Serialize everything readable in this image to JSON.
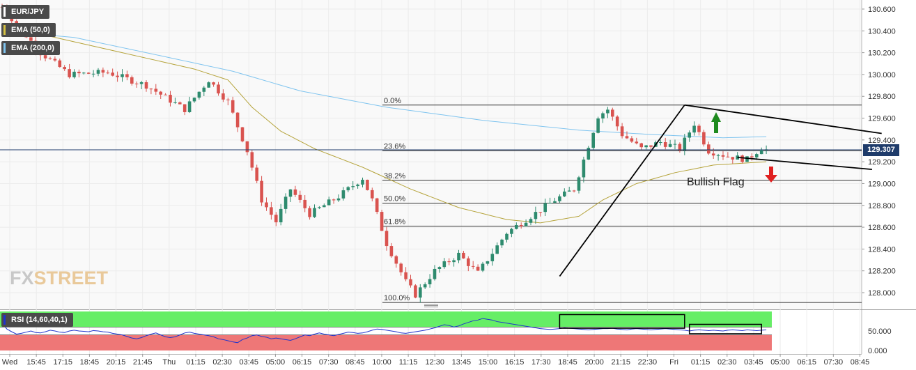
{
  "instrument": "EUR/JPY",
  "indicators": {
    "ema50": {
      "label": "EMA (50,0)",
      "color": "#b5a33a"
    },
    "ema200": {
      "label": "EMA (200,0)",
      "color": "#7fc4ef"
    },
    "rsi": {
      "label": "RSI (14,60,40,1)"
    }
  },
  "watermark": {
    "part1": "FX",
    "part2": "STREET"
  },
  "current_price": "129.307",
  "annotation": "Bullish Flag",
  "colors": {
    "bull": "#2e8b6e",
    "bear": "#d9534f",
    "rsi_upper": "#66ee66",
    "rsi_lower": "#ee7777",
    "rsi_line": "#1f33cc",
    "arrow_up": "#1e8a1e",
    "arrow_down": "#e02020"
  },
  "chart_data": {
    "type": "candlestick",
    "y_axis": {
      "ylim": [
        127.92,
        130.66
      ],
      "ticks": [
        "130.600",
        "130.400",
        "130.200",
        "130.000",
        "129.800",
        "129.600",
        "129.400",
        "129.200",
        "129.000",
        "128.800",
        "128.600",
        "128.400",
        "128.200",
        "128.000"
      ]
    },
    "x_axis": {
      "tick_labels": [
        "Wed",
        "15:45",
        "17:15",
        "18:45",
        "20:15",
        "21:45",
        "Thu",
        "01:15",
        "02:30",
        "03:45",
        "05:00",
        "06:15",
        "07:30",
        "08:45",
        "10:00",
        "11:15",
        "12:30",
        "13:45",
        "15:00",
        "16:15",
        "17:30",
        "18:45",
        "20:00",
        "21:15",
        "22:30",
        "Fri",
        "01:15",
        "02:30",
        "03:45",
        "05:00",
        "06:15",
        "07:30",
        "08:45"
      ]
    },
    "fibonacci": [
      {
        "label": "0.0%",
        "price": 129.72
      },
      {
        "label": "23.6%",
        "price": 129.3
      },
      {
        "label": "38.2%",
        "price": 129.03
      },
      {
        "label": "50.0%",
        "price": 128.82
      },
      {
        "label": "61.8%",
        "price": 128.61
      },
      {
        "label": "100.0%",
        "price": 127.91
      }
    ],
    "anchors": [
      {
        "i": 0,
        "p": 130.62
      },
      {
        "i": 8,
        "p": 130.2
      },
      {
        "i": 14,
        "p": 130.0
      },
      {
        "i": 22,
        "p": 130.02
      },
      {
        "i": 30,
        "p": 129.9
      },
      {
        "i": 38,
        "p": 129.68
      },
      {
        "i": 43,
        "p": 129.95
      },
      {
        "i": 47,
        "p": 129.75
      },
      {
        "i": 51,
        "p": 129.3
      },
      {
        "i": 54,
        "p": 128.85
      },
      {
        "i": 57,
        "p": 128.65
      },
      {
        "i": 60,
        "p": 128.95
      },
      {
        "i": 64,
        "p": 128.72
      },
      {
        "i": 70,
        "p": 128.88
      },
      {
        "i": 75,
        "p": 129.05
      },
      {
        "i": 77,
        "p": 128.85
      },
      {
        "i": 80,
        "p": 128.45
      },
      {
        "i": 84,
        "p": 128.1
      },
      {
        "i": 86,
        "p": 127.98
      },
      {
        "i": 90,
        "p": 128.2
      },
      {
        "i": 95,
        "p": 128.35
      },
      {
        "i": 99,
        "p": 128.18
      },
      {
        "i": 105,
        "p": 128.55
      },
      {
        "i": 110,
        "p": 128.7
      },
      {
        "i": 115,
        "p": 128.85
      },
      {
        "i": 119,
        "p": 128.95
      },
      {
        "i": 124,
        "p": 129.62
      },
      {
        "i": 126,
        "p": 129.68
      },
      {
        "i": 129,
        "p": 129.45
      },
      {
        "i": 133,
        "p": 129.32
      },
      {
        "i": 137,
        "p": 129.38
      },
      {
        "i": 141,
        "p": 129.32
      },
      {
        "i": 144,
        "p": 129.55
      },
      {
        "i": 147,
        "p": 129.3
      },
      {
        "i": 151,
        "p": 129.25
      },
      {
        "i": 155,
        "p": 129.22
      },
      {
        "i": 158,
        "p": 129.33
      },
      {
        "i": 159,
        "p": 129.31
      }
    ],
    "ema50": [
      [
        0,
        130.43
      ],
      [
        10,
        130.35
      ],
      [
        25,
        130.2
      ],
      [
        40,
        130.05
      ],
      [
        47,
        129.95
      ],
      [
        52,
        129.7
      ],
      [
        58,
        129.48
      ],
      [
        65,
        129.32
      ],
      [
        75,
        129.15
      ],
      [
        85,
        128.95
      ],
      [
        95,
        128.78
      ],
      [
        105,
        128.67
      ],
      [
        112,
        128.64
      ],
      [
        120,
        128.7
      ],
      [
        125,
        128.85
      ],
      [
        132,
        129.0
      ],
      [
        140,
        129.1
      ],
      [
        148,
        129.17
      ],
      [
        159,
        129.2
      ]
    ],
    "ema200": [
      [
        0,
        130.4
      ],
      [
        15,
        130.34
      ],
      [
        30,
        130.2
      ],
      [
        48,
        130.03
      ],
      [
        62,
        129.85
      ],
      [
        80,
        129.7
      ],
      [
        100,
        129.58
      ],
      [
        120,
        129.49
      ],
      [
        135,
        129.45
      ],
      [
        150,
        129.42
      ],
      [
        159,
        129.43
      ]
    ],
    "rsi": {
      "ylim": [
        0,
        100
      ],
      "ticks": [
        "50.000",
        "0.000"
      ],
      "upper": 60,
      "lower": 40,
      "values": [
        70,
        55,
        48,
        42,
        44,
        47,
        50,
        46,
        45,
        48,
        52,
        50,
        47,
        46,
        50,
        52,
        50,
        49,
        48,
        51,
        50,
        48,
        47,
        44,
        42,
        40,
        36,
        32,
        30,
        33,
        38,
        42,
        45,
        40,
        35,
        33,
        35,
        40,
        45,
        47,
        44,
        42,
        40,
        38,
        35,
        30,
        28,
        25,
        22,
        20,
        28,
        32,
        38,
        40,
        36,
        34,
        30,
        32,
        30,
        28,
        26,
        30,
        35,
        40,
        38,
        42,
        45,
        42,
        40,
        38,
        41,
        44,
        47,
        46,
        44,
        45,
        48,
        52,
        55,
        54,
        52,
        50,
        48,
        45,
        44,
        46,
        48,
        50,
        52,
        55,
        58,
        62,
        66,
        64,
        60,
        63,
        68,
        72,
        76,
        78,
        82,
        80,
        78,
        74,
        72,
        70,
        68,
        66,
        64,
        62,
        60,
        58,
        56,
        55,
        54,
        55,
        56,
        58,
        57,
        56,
        55,
        54,
        53,
        54,
        55,
        56,
        56,
        57,
        55,
        54,
        53,
        55,
        56,
        55,
        54,
        53,
        54,
        55,
        56,
        55,
        54,
        53,
        52,
        50,
        52,
        53,
        52,
        51,
        52,
        51,
        50,
        52,
        53,
        52,
        51,
        53,
        52,
        51,
        52,
        53
      ]
    },
    "patterns": [
      {
        "type": "flagpole",
        "from": {
          "i": 116,
          "p": 128.15
        },
        "to": {
          "i": 142,
          "p": 129.72
        }
      },
      {
        "type": "flag_upper",
        "from": {
          "i": 142,
          "p": 129.72
        },
        "to": {
          "i": 183,
          "p": 129.46
        }
      },
      {
        "type": "flag_lower",
        "from": {
          "i": 153,
          "p": 129.24
        },
        "to": {
          "i": 181,
          "p": 129.13
        }
      }
    ]
  }
}
